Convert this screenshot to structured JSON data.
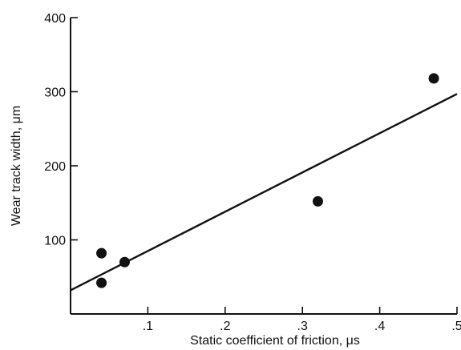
{
  "chart_data": {
    "type": "scatter",
    "title": "",
    "xlabel": "Static coefficient of friction, μs",
    "ylabel": "Wear track width, μm",
    "xlim": [
      0,
      0.5
    ],
    "ylim": [
      0,
      400
    ],
    "x_ticks": [
      0.1,
      0.2,
      0.3,
      0.4,
      0.5
    ],
    "x_tick_labels": [
      ".1",
      ".2",
      ".3",
      ".4",
      ".5"
    ],
    "y_ticks": [
      100,
      200,
      300,
      400
    ],
    "y_tick_labels": [
      "100",
      "200",
      "300",
      "400"
    ],
    "grid": false,
    "series": [
      {
        "points": [
          {
            "x": 0.04,
            "y": 82
          },
          {
            "x": 0.04,
            "y": 42
          },
          {
            "x": 0.07,
            "y": 70
          },
          {
            "x": 0.32,
            "y": 152
          },
          {
            "x": 0.47,
            "y": 318
          }
        ],
        "color": "#111111"
      }
    ],
    "fit_line": {
      "x": [
        0,
        0.5
      ],
      "y": [
        32,
        297
      ],
      "color": "#111111"
    }
  }
}
